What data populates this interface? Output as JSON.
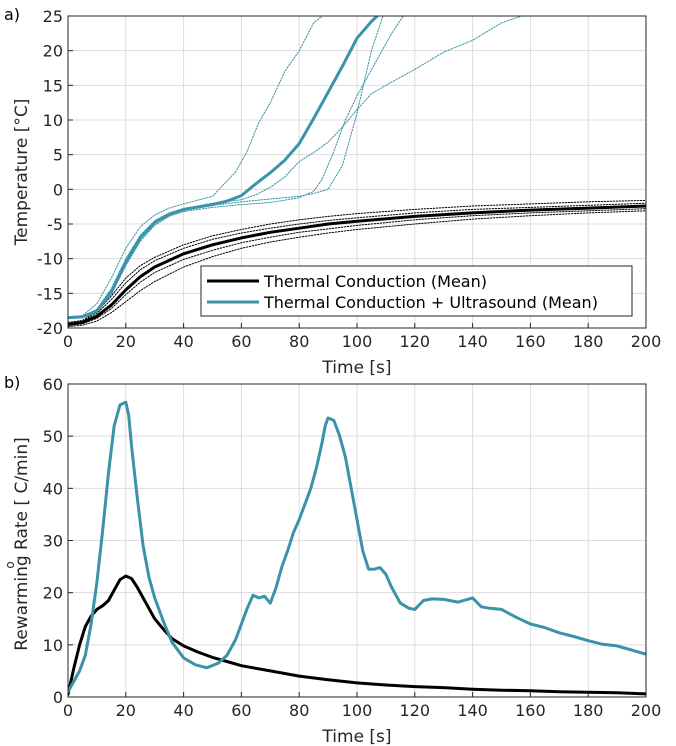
{
  "chart_data": [
    {
      "panel_label": "a)",
      "type": "line",
      "xlabel": "Time [s]",
      "ylabel": "Temperature [°C]",
      "xlim": [
        0,
        200
      ],
      "ylim": [
        -20,
        25
      ],
      "xticks": [
        "0",
        "20",
        "40",
        "60",
        "80",
        "100",
        "120",
        "140",
        "160",
        "180",
        "200"
      ],
      "yticks": [
        "-20",
        "-15",
        "-10",
        "-5",
        "0",
        "5",
        "10",
        "15",
        "20",
        "25"
      ],
      "grid": true,
      "legend": {
        "position": "lower-right",
        "entries": [
          "Thermal Conduction (Mean)",
          "Thermal Conduction + Ultrasound (Mean)"
        ]
      },
      "series": [
        {
          "name": "Thermal Conduction (Mean)",
          "role": "mean",
          "color": "#000000",
          "x": [
            0,
            5,
            10,
            15,
            20,
            25,
            30,
            40,
            50,
            60,
            70,
            80,
            90,
            100,
            120,
            140,
            160,
            180,
            200
          ],
          "y": [
            -19.5,
            -19.2,
            -18.3,
            -16.7,
            -14.5,
            -12.6,
            -11.2,
            -9.3,
            -8.0,
            -7.0,
            -6.2,
            -5.6,
            -5.0,
            -4.6,
            -3.9,
            -3.4,
            -3.0,
            -2.7,
            -2.4
          ]
        },
        {
          "role": "individual",
          "color": "#000000",
          "x": [
            0,
            5,
            10,
            15,
            20,
            25,
            30,
            40,
            50,
            60,
            70,
            80,
            90,
            100,
            120,
            140,
            160,
            180,
            200
          ],
          "y": [
            -19.2,
            -18.9,
            -17.6,
            -15.4,
            -12.8,
            -11.0,
            -9.8,
            -8.0,
            -6.7,
            -5.8,
            -5.0,
            -4.4,
            -3.9,
            -3.5,
            -2.9,
            -2.4,
            -2.1,
            -1.8,
            -1.6
          ]
        },
        {
          "role": "individual",
          "color": "#000000",
          "x": [
            0,
            5,
            10,
            15,
            20,
            25,
            30,
            40,
            50,
            60,
            70,
            80,
            90,
            100,
            120,
            140,
            160,
            180,
            200
          ],
          "y": [
            -19.3,
            -19.0,
            -17.9,
            -15.9,
            -13.5,
            -11.6,
            -10.3,
            -8.5,
            -7.2,
            -6.3,
            -5.6,
            -5.0,
            -4.5,
            -4.1,
            -3.4,
            -2.9,
            -2.6,
            -2.3,
            -2.0
          ]
        },
        {
          "role": "individual",
          "color": "#000000",
          "x": [
            0,
            5,
            10,
            15,
            20,
            25,
            30,
            40,
            50,
            60,
            70,
            80,
            90,
            100,
            120,
            140,
            160,
            180,
            200
          ],
          "y": [
            -19.6,
            -19.4,
            -18.6,
            -17.2,
            -15.2,
            -13.4,
            -12.0,
            -10.1,
            -8.8,
            -7.7,
            -6.9,
            -6.2,
            -5.7,
            -5.2,
            -4.4,
            -3.8,
            -3.4,
            -3.1,
            -2.8
          ]
        },
        {
          "role": "individual",
          "color": "#000000",
          "x": [
            0,
            5,
            10,
            15,
            20,
            25,
            30,
            40,
            50,
            60,
            70,
            80,
            90,
            100,
            120,
            140,
            160,
            180,
            200
          ],
          "y": [
            -19.8,
            -19.6,
            -19.0,
            -17.8,
            -16.2,
            -14.6,
            -13.3,
            -11.2,
            -9.7,
            -8.5,
            -7.6,
            -6.9,
            -6.3,
            -5.8,
            -5.0,
            -4.3,
            -3.8,
            -3.4,
            -3.1
          ]
        },
        {
          "name": "Thermal Conduction + Ultrasound (Mean)",
          "role": "mean",
          "color": "#3a93a8",
          "x": [
            0,
            5,
            10,
            15,
            20,
            25,
            30,
            35,
            40,
            50,
            55,
            60,
            65,
            70,
            75,
            80,
            85,
            90,
            95,
            100,
            105,
            107
          ],
          "y": [
            -18.5,
            -18.4,
            -17.5,
            -14.8,
            -10.5,
            -7.0,
            -4.8,
            -3.6,
            -2.9,
            -2.2,
            -1.7,
            -0.9,
            0.8,
            2.4,
            4.2,
            6.6,
            10.2,
            14.0,
            17.8,
            21.8,
            24.2,
            25
          ]
        },
        {
          "role": "individual",
          "color": "#3a93a8",
          "x": [
            0,
            5,
            10,
            15,
            20,
            25,
            30,
            35,
            40,
            50,
            55,
            58,
            62,
            66,
            70,
            75,
            80,
            85,
            88
          ],
          "y": [
            -18.4,
            -18.2,
            -16.5,
            -12.8,
            -8.5,
            -5.4,
            -3.7,
            -2.7,
            -2.1,
            -1.0,
            1.2,
            2.5,
            5.5,
            9.6,
            12.5,
            17.0,
            20.0,
            24.0,
            25
          ]
        },
        {
          "role": "individual",
          "color": "#3a93a8",
          "x": [
            0,
            5,
            10,
            15,
            20,
            25,
            30,
            35,
            40,
            50,
            60,
            65,
            70,
            75,
            80,
            85,
            90,
            95,
            100,
            105,
            110,
            120,
            130,
            140,
            150,
            157
          ],
          "y": [
            -18.5,
            -18.4,
            -17.3,
            -14.3,
            -10.0,
            -6.6,
            -4.5,
            -3.4,
            -2.8,
            -2.0,
            -1.5,
            -0.8,
            0.3,
            1.8,
            4.0,
            5.3,
            6.8,
            9.0,
            11.5,
            13.8,
            15.0,
            17.3,
            19.8,
            21.5,
            24.0,
            25
          ]
        },
        {
          "role": "individual",
          "color": "#3a93a8",
          "x": [
            0,
            5,
            10,
            15,
            20,
            25,
            30,
            35,
            40,
            50,
            60,
            70,
            80,
            85,
            88,
            92,
            96,
            100,
            104,
            108,
            112,
            116
          ],
          "y": [
            -18.6,
            -18.5,
            -17.8,
            -15.2,
            -11.0,
            -7.5,
            -5.2,
            -3.9,
            -3.2,
            -2.6,
            -2.2,
            -1.9,
            -1.2,
            -0.3,
            1.5,
            5.5,
            10.0,
            13.5,
            16.5,
            19.5,
            22.5,
            25
          ]
        },
        {
          "role": "individual",
          "color": "#3a93a8",
          "x": [
            0,
            5,
            10,
            15,
            20,
            25,
            30,
            35,
            40,
            50,
            60,
            70,
            80,
            85,
            90,
            95,
            100,
            105,
            109
          ],
          "y": [
            -18.5,
            -18.4,
            -17.6,
            -14.9,
            -10.6,
            -7.1,
            -4.9,
            -3.7,
            -3.0,
            -2.3,
            -1.8,
            -1.4,
            -1.0,
            -0.6,
            0.0,
            3.5,
            11.0,
            20.0,
            25
          ]
        }
      ]
    },
    {
      "panel_label": "b)",
      "type": "line",
      "xlabel": "Time [s]",
      "ylabel": "Rewarming Rate [ C/min]",
      "ylabel_degree_mark": "o",
      "xlim": [
        0,
        200
      ],
      "ylim": [
        0,
        60
      ],
      "xticks": [
        "0",
        "20",
        "40",
        "60",
        "80",
        "100",
        "120",
        "140",
        "160",
        "180",
        "200"
      ],
      "yticks": [
        "0",
        "10",
        "20",
        "30",
        "40",
        "50",
        "60"
      ],
      "grid": true,
      "series": [
        {
          "role": "conduction",
          "color": "#000000",
          "x": [
            0,
            2,
            4,
            6,
            8,
            10,
            12,
            14,
            16,
            18,
            20,
            22,
            24,
            26,
            28,
            30,
            33,
            36,
            40,
            45,
            50,
            55,
            60,
            70,
            80,
            90,
            100,
            110,
            120,
            130,
            140,
            150,
            160,
            170,
            180,
            190,
            200
          ],
          "y": [
            0.5,
            5.5,
            10,
            13.5,
            15.5,
            16.8,
            17.5,
            18.5,
            20.5,
            22.5,
            23.2,
            22.7,
            21,
            19,
            17,
            15,
            13,
            11.2,
            9.8,
            8.6,
            7.6,
            6.8,
            6.0,
            5.0,
            4.0,
            3.3,
            2.7,
            2.3,
            2.0,
            1.8,
            1.5,
            1.3,
            1.2,
            1.0,
            0.9,
            0.8,
            0.6
          ]
        },
        {
          "role": "ultrasound",
          "color": "#3a93a8",
          "x": [
            0,
            2,
            4,
            6,
            8,
            10,
            12,
            14,
            16,
            18,
            20,
            21,
            22,
            24,
            26,
            28,
            30,
            33,
            36,
            40,
            44,
            48,
            52,
            55,
            58,
            60,
            62,
            64,
            66,
            68,
            70,
            72,
            74,
            76,
            78,
            80,
            82,
            84,
            86,
            88,
            89,
            90,
            92,
            94,
            96,
            98,
            100,
            102,
            104,
            106,
            108,
            110,
            112,
            115,
            118,
            120,
            123,
            126,
            130,
            135,
            140,
            143,
            146,
            150,
            155,
            160,
            165,
            170,
            175,
            180,
            185,
            190,
            195,
            200
          ],
          "y": [
            1,
            3,
            5,
            8,
            14,
            22,
            32,
            43,
            52,
            56,
            56.5,
            54,
            48,
            38,
            29,
            23,
            19,
            14.5,
            10.5,
            7.5,
            6.2,
            5.6,
            6.5,
            8,
            11,
            14,
            17,
            19.5,
            19,
            19.3,
            18,
            21,
            25,
            28,
            31.5,
            34,
            37,
            40,
            44,
            49,
            52,
            53.5,
            53,
            50,
            46,
            40,
            34,
            28,
            24.5,
            24.5,
            24.8,
            23.5,
            21,
            18,
            17,
            16.8,
            18.5,
            18.8,
            18.7,
            18.2,
            19,
            17.3,
            17,
            16.8,
            15.3,
            14,
            13.3,
            12.3,
            11.6,
            10.8,
            10.1,
            9.8,
            9.0,
            8.2
          ]
        }
      ]
    }
  ]
}
